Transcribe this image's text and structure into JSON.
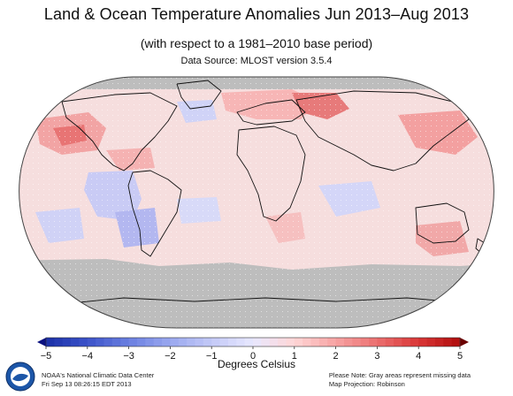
{
  "title": "Land & Ocean Temperature Anomalies Jun 2013–Aug 2013",
  "subtitle": "(with respect to a 1981–2010 base period)",
  "source": "Data Source: MLOST version 3.5.4",
  "colorbar": {
    "label": "Degrees Celsius",
    "ticks": [
      "−5",
      "−4",
      "−3",
      "−2",
      "−1",
      "0",
      "1",
      "2",
      "3",
      "4",
      "5"
    ],
    "colors": [
      "#1b2fa6",
      "#3b53c9",
      "#6a7fe0",
      "#9aa8ef",
      "#c3c9f7",
      "#e8e8ff",
      "#ffd6d6",
      "#f7a3a3",
      "#eb6f6f",
      "#d93636",
      "#b00d0d"
    ],
    "low_arrow_color": "#0a1180",
    "high_arrow_color": "#6a0000"
  },
  "map": {
    "projection_name": "Robinson",
    "missing_data_color": "#bdbdbd",
    "ocean_base_color": "#f6dede",
    "land_outline_color": "#111111",
    "icon": "globe-robinson-icon"
  },
  "footer": {
    "left_line1": "NOAA's National Climatic Data Center",
    "left_line2": "Fri Sep 13 08:26:15 EDT 2013",
    "right_line1": "Please Note: Gray areas represent missing data",
    "right_line2": "Map Projection: Robinson"
  },
  "logo": {
    "text": "NOAA",
    "icon": "noaa-logo-icon"
  }
}
